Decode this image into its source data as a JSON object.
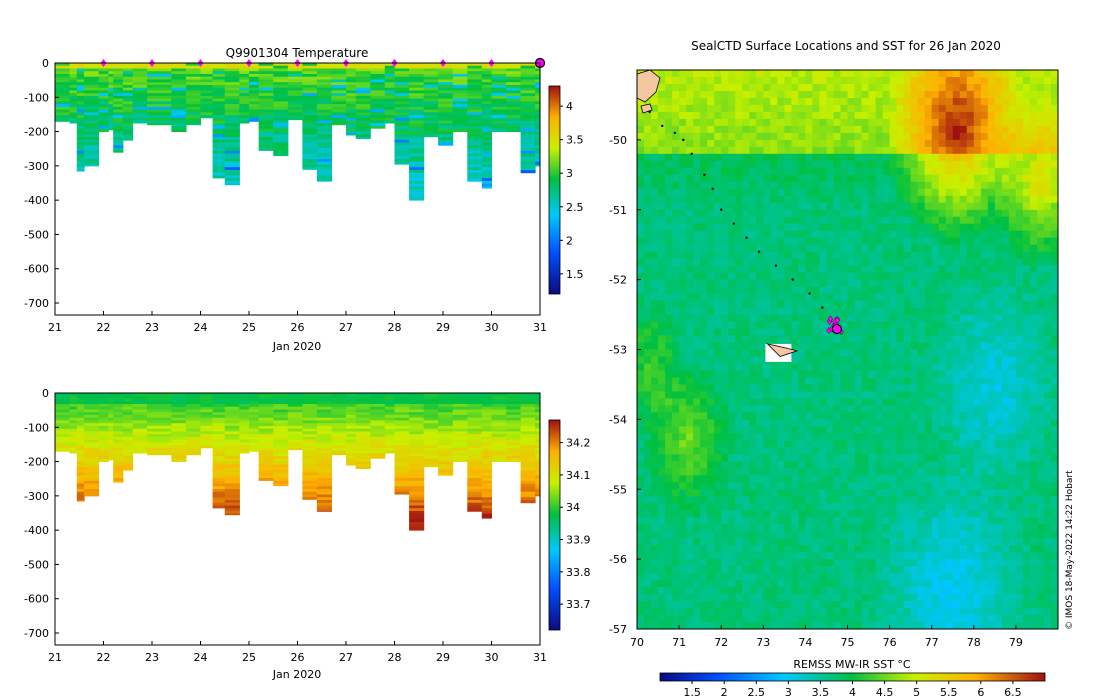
{
  "chart_data": [
    {
      "type": "heatmap",
      "title": "Q9901304  Temperature",
      "xlabel": "Jan 2020",
      "x_ticks": [
        "21",
        "22",
        "23",
        "24",
        "25",
        "26",
        "27",
        "28",
        "29",
        "30",
        "31"
      ],
      "xlim": [
        21,
        31
      ],
      "y_ticks": [
        "0",
        "-100",
        "-200",
        "-300",
        "-400",
        "-500",
        "-600",
        "-700"
      ],
      "ylim": [
        -735,
        0
      ],
      "profile_times": [
        21.0,
        21.3,
        21.45,
        21.6,
        21.9,
        22.1,
        22.2,
        22.4,
        22.6,
        22.9,
        23.4,
        23.7,
        24.0,
        24.25,
        24.5,
        24.8,
        25.0,
        25.2,
        25.5,
        25.8,
        26.1,
        26.4,
        26.7,
        27.0,
        27.2,
        27.5,
        27.8,
        28.0,
        28.3,
        28.6,
        28.9,
        29.2,
        29.5,
        29.8,
        30.0,
        30.3,
        30.6,
        30.9,
        31.0
      ],
      "profile_depths": [
        -170,
        -175,
        -315,
        -300,
        -200,
        -195,
        -260,
        -225,
        -175,
        -180,
        -200,
        -180,
        -160,
        -335,
        -355,
        -175,
        -170,
        -255,
        -270,
        -165,
        -310,
        -345,
        -180,
        -210,
        -220,
        -190,
        -175,
        -295,
        -400,
        -215,
        -240,
        -200,
        -345,
        -365,
        -200,
        -200,
        -320,
        -300,
        -365
      ],
      "colorbar": {
        "ticks": [
          "1.5",
          "2",
          "2.5",
          "3",
          "3.5",
          "4"
        ],
        "range": [
          1.2,
          4.3
        ]
      },
      "markers": [
        22,
        23,
        24,
        25,
        26,
        27,
        28,
        29,
        30,
        31
      ]
    },
    {
      "type": "heatmap",
      "title": "",
      "xlabel": "Jan 2020",
      "x_ticks": [
        "21",
        "22",
        "23",
        "24",
        "25",
        "26",
        "27",
        "28",
        "29",
        "30",
        "31"
      ],
      "xlim": [
        21,
        31
      ],
      "y_ticks": [
        "0",
        "-100",
        "-200",
        "-300",
        "-400",
        "-500",
        "-600",
        "-700"
      ],
      "ylim": [
        -735,
        0
      ],
      "colorbar": {
        "ticks": [
          "33.7",
          "33.8",
          "33.9",
          "34",
          "34.1",
          "34.2"
        ],
        "range": [
          33.62,
          34.27
        ]
      }
    },
    {
      "type": "heatmap",
      "title": "SealCTD Surface Locations and SST for 26 Jan 2020",
      "x_ticks": [
        "70",
        "71",
        "72",
        "73",
        "74",
        "75",
        "76",
        "77",
        "78",
        "79"
      ],
      "xlim": [
        70,
        80
      ],
      "y_ticks": [
        "-50",
        "-51",
        "-52",
        "-53",
        "-54",
        "-55",
        "-56",
        "-57"
      ],
      "ylim": [
        -57,
        -49
      ],
      "colorbar_label": "REMSS MW-IR SST °C",
      "colorbar": {
        "ticks": [
          "1.5",
          "2",
          "2.5",
          "3",
          "3.5",
          "4",
          "4.5",
          "5",
          "5.5",
          "6",
          "6.5"
        ],
        "range": [
          1,
          7
        ]
      },
      "track": [
        [
          70.3,
          -49.6
        ],
        [
          70.6,
          -49.8
        ],
        [
          70.9,
          -49.9
        ],
        [
          71.1,
          -50.0
        ],
        [
          71.3,
          -50.2
        ],
        [
          71.6,
          -50.5
        ],
        [
          71.8,
          -50.7
        ],
        [
          72.0,
          -51.0
        ],
        [
          72.3,
          -51.2
        ],
        [
          72.6,
          -51.4
        ],
        [
          72.9,
          -51.6
        ],
        [
          73.3,
          -51.8
        ],
        [
          73.7,
          -52.0
        ],
        [
          74.1,
          -52.2
        ],
        [
          74.4,
          -52.4
        ],
        [
          74.6,
          -52.55
        ]
      ],
      "cluster": [
        74.7,
        -52.65
      ]
    }
  ],
  "credit": "© IMOS 18-May-2022 14:22 Hobart"
}
